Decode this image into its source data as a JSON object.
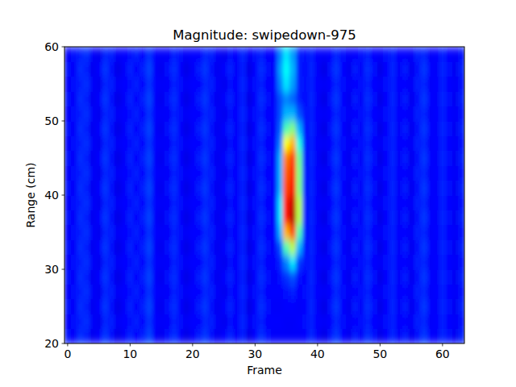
{
  "chart_data": {
    "type": "heatmap",
    "title": "Magnitude: swipedown-975",
    "x_label": "Frame",
    "y_label": "Range (cm)",
    "x": [
      0,
      1,
      2,
      3,
      4,
      5,
      6,
      7,
      8,
      9,
      10,
      11,
      12,
      13,
      14,
      15,
      16,
      17,
      18,
      19,
      20,
      21,
      22,
      23,
      24,
      25,
      26,
      27,
      28,
      29,
      30,
      31,
      32,
      33,
      34,
      35,
      36,
      37,
      38,
      39,
      40,
      41,
      42,
      43,
      44,
      45,
      46,
      47,
      48,
      49,
      50,
      51,
      52,
      53,
      54,
      55,
      56,
      57,
      58,
      59,
      60,
      61,
      62,
      63
    ],
    "y": [
      21,
      23,
      25,
      27,
      29,
      31,
      33,
      35,
      37,
      39,
      41,
      43,
      45,
      47,
      49,
      51,
      53,
      55,
      57,
      59
    ],
    "cells": [
      [
        0.14,
        0.12,
        0.17,
        0.15,
        0.11,
        0.13,
        0.18,
        0.14,
        0.1,
        0.12,
        0.16,
        0.13,
        0.15,
        0.19,
        0.12,
        0.11,
        0.14,
        0.17,
        0.13,
        0.1,
        0.12,
        0.15,
        0.18,
        0.14,
        0.11,
        0.13,
        0.16,
        0.12,
        0.15,
        0.1,
        0.13,
        0.17,
        0.14,
        0.12,
        0.12,
        0.12,
        0.12,
        0.12,
        0.13,
        0.16,
        0.12,
        0.1,
        0.14,
        0.18,
        0.13,
        0.11,
        0.15,
        0.12,
        0.17,
        0.14,
        0.1,
        0.13,
        0.16,
        0.12,
        0.15,
        0.11,
        0.14,
        0.18,
        0.13,
        0.12,
        0.16,
        0.14,
        0.11,
        0.15
      ],
      [
        0.12,
        0.14,
        0.15,
        0.17,
        0.12,
        0.11,
        0.16,
        0.15,
        0.12,
        0.13,
        0.14,
        0.15,
        0.13,
        0.17,
        0.13,
        0.12,
        0.12,
        0.15,
        0.14,
        0.12,
        0.13,
        0.13,
        0.16,
        0.15,
        0.12,
        0.11,
        0.14,
        0.13,
        0.16,
        0.12,
        0.14,
        0.15,
        0.13,
        0.13,
        0.13,
        0.12,
        0.12,
        0.13,
        0.14,
        0.15,
        0.13,
        0.12,
        0.13,
        0.16,
        0.14,
        0.12,
        0.13,
        0.14,
        0.15,
        0.13,
        0.12,
        0.14,
        0.15,
        0.13,
        0.13,
        0.12,
        0.15,
        0.16,
        0.12,
        0.13,
        0.15,
        0.13,
        0.12,
        0.14
      ],
      [
        0.14,
        0.12,
        0.17,
        0.15,
        0.11,
        0.13,
        0.18,
        0.14,
        0.1,
        0.12,
        0.16,
        0.13,
        0.15,
        0.19,
        0.12,
        0.11,
        0.14,
        0.17,
        0.13,
        0.1,
        0.12,
        0.15,
        0.18,
        0.14,
        0.11,
        0.13,
        0.16,
        0.12,
        0.15,
        0.1,
        0.13,
        0.17,
        0.14,
        0.12,
        0.12,
        0.13,
        0.13,
        0.12,
        0.13,
        0.16,
        0.12,
        0.1,
        0.14,
        0.18,
        0.13,
        0.11,
        0.15,
        0.12,
        0.17,
        0.14,
        0.1,
        0.13,
        0.16,
        0.12,
        0.15,
        0.11,
        0.14,
        0.18,
        0.13,
        0.12,
        0.16,
        0.14,
        0.11,
        0.15
      ],
      [
        0.12,
        0.14,
        0.15,
        0.17,
        0.12,
        0.11,
        0.16,
        0.15,
        0.12,
        0.13,
        0.14,
        0.15,
        0.13,
        0.17,
        0.13,
        0.12,
        0.12,
        0.15,
        0.14,
        0.12,
        0.13,
        0.13,
        0.16,
        0.15,
        0.12,
        0.11,
        0.14,
        0.13,
        0.16,
        0.12,
        0.14,
        0.15,
        0.13,
        0.13,
        0.13,
        0.14,
        0.15,
        0.13,
        0.14,
        0.15,
        0.13,
        0.12,
        0.13,
        0.16,
        0.14,
        0.12,
        0.13,
        0.14,
        0.15,
        0.13,
        0.12,
        0.14,
        0.15,
        0.13,
        0.13,
        0.12,
        0.15,
        0.16,
        0.12,
        0.13,
        0.15,
        0.13,
        0.12,
        0.14
      ],
      [
        0.14,
        0.12,
        0.17,
        0.15,
        0.11,
        0.13,
        0.18,
        0.14,
        0.1,
        0.12,
        0.16,
        0.13,
        0.15,
        0.19,
        0.12,
        0.11,
        0.14,
        0.17,
        0.13,
        0.1,
        0.12,
        0.15,
        0.18,
        0.14,
        0.11,
        0.13,
        0.16,
        0.12,
        0.15,
        0.1,
        0.13,
        0.17,
        0.14,
        0.12,
        0.14,
        0.17,
        0.2,
        0.14,
        0.13,
        0.16,
        0.12,
        0.1,
        0.14,
        0.18,
        0.13,
        0.11,
        0.15,
        0.12,
        0.17,
        0.14,
        0.1,
        0.13,
        0.16,
        0.12,
        0.15,
        0.11,
        0.14,
        0.18,
        0.13,
        0.12,
        0.16,
        0.14,
        0.11,
        0.15
      ],
      [
        0.12,
        0.14,
        0.15,
        0.17,
        0.12,
        0.11,
        0.16,
        0.15,
        0.12,
        0.13,
        0.14,
        0.15,
        0.13,
        0.17,
        0.13,
        0.12,
        0.12,
        0.15,
        0.14,
        0.12,
        0.13,
        0.13,
        0.16,
        0.15,
        0.12,
        0.11,
        0.14,
        0.13,
        0.16,
        0.12,
        0.14,
        0.15,
        0.13,
        0.13,
        0.16,
        0.25,
        0.35,
        0.18,
        0.14,
        0.15,
        0.13,
        0.12,
        0.13,
        0.16,
        0.14,
        0.12,
        0.13,
        0.14,
        0.15,
        0.13,
        0.12,
        0.14,
        0.15,
        0.13,
        0.13,
        0.12,
        0.15,
        0.16,
        0.12,
        0.13,
        0.15,
        0.13,
        0.12,
        0.14
      ],
      [
        0.14,
        0.12,
        0.17,
        0.15,
        0.11,
        0.13,
        0.18,
        0.14,
        0.1,
        0.12,
        0.16,
        0.13,
        0.15,
        0.19,
        0.12,
        0.11,
        0.14,
        0.17,
        0.13,
        0.1,
        0.12,
        0.15,
        0.18,
        0.14,
        0.11,
        0.13,
        0.16,
        0.12,
        0.15,
        0.1,
        0.13,
        0.17,
        0.14,
        0.12,
        0.2,
        0.45,
        0.55,
        0.3,
        0.13,
        0.16,
        0.12,
        0.1,
        0.14,
        0.18,
        0.13,
        0.11,
        0.15,
        0.12,
        0.17,
        0.14,
        0.1,
        0.13,
        0.16,
        0.12,
        0.15,
        0.11,
        0.14,
        0.18,
        0.13,
        0.12,
        0.16,
        0.14,
        0.11,
        0.15
      ],
      [
        0.12,
        0.14,
        0.15,
        0.17,
        0.12,
        0.11,
        0.16,
        0.15,
        0.12,
        0.13,
        0.14,
        0.15,
        0.13,
        0.17,
        0.13,
        0.12,
        0.12,
        0.15,
        0.14,
        0.12,
        0.13,
        0.13,
        0.16,
        0.15,
        0.12,
        0.11,
        0.14,
        0.13,
        0.16,
        0.12,
        0.14,
        0.15,
        0.13,
        0.13,
        0.3,
        0.7,
        0.8,
        0.45,
        0.14,
        0.15,
        0.13,
        0.12,
        0.13,
        0.16,
        0.14,
        0.12,
        0.13,
        0.14,
        0.15,
        0.13,
        0.12,
        0.14,
        0.15,
        0.13,
        0.13,
        0.12,
        0.15,
        0.16,
        0.12,
        0.13,
        0.15,
        0.13,
        0.12,
        0.14
      ],
      [
        0.14,
        0.12,
        0.17,
        0.15,
        0.11,
        0.13,
        0.18,
        0.14,
        0.1,
        0.12,
        0.16,
        0.13,
        0.15,
        0.19,
        0.12,
        0.11,
        0.14,
        0.17,
        0.13,
        0.1,
        0.12,
        0.15,
        0.18,
        0.14,
        0.11,
        0.13,
        0.16,
        0.12,
        0.15,
        0.1,
        0.13,
        0.17,
        0.14,
        0.12,
        0.35,
        0.85,
        0.95,
        0.55,
        0.13,
        0.16,
        0.12,
        0.1,
        0.14,
        0.18,
        0.13,
        0.11,
        0.15,
        0.12,
        0.17,
        0.14,
        0.1,
        0.13,
        0.16,
        0.12,
        0.15,
        0.11,
        0.14,
        0.18,
        0.13,
        0.12,
        0.16,
        0.14,
        0.11,
        0.15
      ],
      [
        0.12,
        0.14,
        0.15,
        0.17,
        0.12,
        0.11,
        0.16,
        0.15,
        0.12,
        0.13,
        0.14,
        0.15,
        0.13,
        0.17,
        0.13,
        0.12,
        0.12,
        0.15,
        0.14,
        0.12,
        0.13,
        0.13,
        0.16,
        0.15,
        0.12,
        0.11,
        0.14,
        0.13,
        0.16,
        0.12,
        0.14,
        0.15,
        0.13,
        0.13,
        0.35,
        0.85,
        0.93,
        0.55,
        0.14,
        0.15,
        0.13,
        0.12,
        0.13,
        0.16,
        0.14,
        0.12,
        0.13,
        0.14,
        0.15,
        0.13,
        0.12,
        0.14,
        0.15,
        0.13,
        0.13,
        0.12,
        0.15,
        0.16,
        0.12,
        0.13,
        0.15,
        0.13,
        0.12,
        0.14
      ],
      [
        0.14,
        0.12,
        0.17,
        0.15,
        0.11,
        0.13,
        0.18,
        0.14,
        0.1,
        0.12,
        0.16,
        0.13,
        0.15,
        0.19,
        0.12,
        0.11,
        0.14,
        0.17,
        0.13,
        0.1,
        0.12,
        0.15,
        0.18,
        0.14,
        0.11,
        0.13,
        0.16,
        0.12,
        0.15,
        0.1,
        0.13,
        0.17,
        0.14,
        0.12,
        0.3,
        0.8,
        0.88,
        0.5,
        0.13,
        0.16,
        0.12,
        0.1,
        0.14,
        0.18,
        0.13,
        0.11,
        0.15,
        0.12,
        0.17,
        0.14,
        0.1,
        0.13,
        0.16,
        0.12,
        0.15,
        0.11,
        0.14,
        0.18,
        0.13,
        0.12,
        0.16,
        0.14,
        0.11,
        0.15
      ],
      [
        0.12,
        0.14,
        0.15,
        0.17,
        0.12,
        0.11,
        0.16,
        0.15,
        0.12,
        0.13,
        0.14,
        0.15,
        0.13,
        0.17,
        0.13,
        0.12,
        0.12,
        0.15,
        0.14,
        0.12,
        0.13,
        0.13,
        0.16,
        0.15,
        0.12,
        0.11,
        0.14,
        0.13,
        0.16,
        0.12,
        0.14,
        0.15,
        0.13,
        0.13,
        0.3,
        0.78,
        0.85,
        0.5,
        0.14,
        0.15,
        0.13,
        0.12,
        0.13,
        0.16,
        0.14,
        0.12,
        0.13,
        0.14,
        0.15,
        0.13,
        0.12,
        0.14,
        0.15,
        0.13,
        0.13,
        0.12,
        0.15,
        0.16,
        0.12,
        0.13,
        0.15,
        0.13,
        0.12,
        0.14
      ],
      [
        0.14,
        0.12,
        0.17,
        0.15,
        0.11,
        0.13,
        0.18,
        0.14,
        0.1,
        0.12,
        0.16,
        0.13,
        0.15,
        0.19,
        0.12,
        0.11,
        0.14,
        0.17,
        0.13,
        0.1,
        0.12,
        0.15,
        0.18,
        0.14,
        0.11,
        0.13,
        0.16,
        0.12,
        0.15,
        0.1,
        0.13,
        0.17,
        0.14,
        0.12,
        0.3,
        0.75,
        0.82,
        0.48,
        0.13,
        0.16,
        0.12,
        0.1,
        0.14,
        0.18,
        0.13,
        0.11,
        0.15,
        0.12,
        0.17,
        0.14,
        0.1,
        0.13,
        0.16,
        0.12,
        0.15,
        0.11,
        0.14,
        0.18,
        0.13,
        0.12,
        0.16,
        0.14,
        0.11,
        0.15
      ],
      [
        0.12,
        0.14,
        0.15,
        0.17,
        0.12,
        0.11,
        0.16,
        0.15,
        0.12,
        0.13,
        0.14,
        0.15,
        0.13,
        0.17,
        0.13,
        0.12,
        0.12,
        0.15,
        0.14,
        0.12,
        0.13,
        0.13,
        0.16,
        0.15,
        0.12,
        0.11,
        0.14,
        0.13,
        0.16,
        0.12,
        0.14,
        0.15,
        0.13,
        0.13,
        0.25,
        0.62,
        0.7,
        0.4,
        0.14,
        0.15,
        0.13,
        0.12,
        0.13,
        0.16,
        0.14,
        0.12,
        0.13,
        0.14,
        0.15,
        0.13,
        0.12,
        0.14,
        0.15,
        0.13,
        0.13,
        0.12,
        0.15,
        0.16,
        0.12,
        0.13,
        0.15,
        0.13,
        0.12,
        0.14
      ],
      [
        0.14,
        0.12,
        0.17,
        0.15,
        0.11,
        0.13,
        0.18,
        0.14,
        0.1,
        0.12,
        0.16,
        0.13,
        0.15,
        0.19,
        0.12,
        0.11,
        0.14,
        0.17,
        0.13,
        0.1,
        0.12,
        0.15,
        0.18,
        0.14,
        0.11,
        0.13,
        0.16,
        0.12,
        0.15,
        0.1,
        0.13,
        0.17,
        0.14,
        0.12,
        0.22,
        0.45,
        0.5,
        0.3,
        0.13,
        0.16,
        0.12,
        0.1,
        0.14,
        0.18,
        0.13,
        0.11,
        0.15,
        0.12,
        0.17,
        0.14,
        0.1,
        0.13,
        0.16,
        0.12,
        0.15,
        0.11,
        0.14,
        0.18,
        0.13,
        0.12,
        0.16,
        0.14,
        0.11,
        0.15
      ],
      [
        0.12,
        0.14,
        0.15,
        0.17,
        0.12,
        0.11,
        0.16,
        0.15,
        0.12,
        0.13,
        0.14,
        0.15,
        0.13,
        0.17,
        0.13,
        0.12,
        0.12,
        0.15,
        0.14,
        0.12,
        0.13,
        0.13,
        0.16,
        0.15,
        0.12,
        0.11,
        0.14,
        0.13,
        0.16,
        0.12,
        0.14,
        0.15,
        0.13,
        0.13,
        0.2,
        0.3,
        0.3,
        0.2,
        0.14,
        0.15,
        0.13,
        0.12,
        0.13,
        0.16,
        0.14,
        0.12,
        0.13,
        0.14,
        0.15,
        0.13,
        0.12,
        0.14,
        0.15,
        0.13,
        0.13,
        0.12,
        0.15,
        0.16,
        0.12,
        0.13,
        0.15,
        0.13,
        0.12,
        0.14
      ],
      [
        0.14,
        0.12,
        0.17,
        0.15,
        0.11,
        0.13,
        0.18,
        0.14,
        0.1,
        0.12,
        0.16,
        0.13,
        0.15,
        0.19,
        0.12,
        0.11,
        0.14,
        0.17,
        0.13,
        0.1,
        0.12,
        0.15,
        0.18,
        0.14,
        0.11,
        0.13,
        0.16,
        0.12,
        0.15,
        0.1,
        0.13,
        0.17,
        0.14,
        0.12,
        0.2,
        0.25,
        0.22,
        0.15,
        0.13,
        0.16,
        0.12,
        0.1,
        0.14,
        0.18,
        0.13,
        0.11,
        0.15,
        0.12,
        0.17,
        0.14,
        0.1,
        0.13,
        0.16,
        0.12,
        0.15,
        0.11,
        0.14,
        0.18,
        0.13,
        0.12,
        0.16,
        0.14,
        0.11,
        0.15
      ],
      [
        0.12,
        0.14,
        0.15,
        0.17,
        0.12,
        0.11,
        0.16,
        0.15,
        0.12,
        0.13,
        0.14,
        0.15,
        0.13,
        0.17,
        0.13,
        0.12,
        0.12,
        0.15,
        0.14,
        0.12,
        0.13,
        0.13,
        0.16,
        0.15,
        0.12,
        0.11,
        0.14,
        0.13,
        0.16,
        0.12,
        0.14,
        0.15,
        0.13,
        0.13,
        0.25,
        0.35,
        0.28,
        0.15,
        0.14,
        0.15,
        0.13,
        0.12,
        0.13,
        0.16,
        0.14,
        0.12,
        0.13,
        0.14,
        0.15,
        0.13,
        0.12,
        0.14,
        0.15,
        0.13,
        0.13,
        0.12,
        0.15,
        0.16,
        0.12,
        0.13,
        0.15,
        0.13,
        0.12,
        0.14
      ],
      [
        0.14,
        0.12,
        0.17,
        0.15,
        0.11,
        0.13,
        0.18,
        0.14,
        0.1,
        0.12,
        0.16,
        0.13,
        0.15,
        0.19,
        0.12,
        0.11,
        0.14,
        0.17,
        0.13,
        0.1,
        0.12,
        0.15,
        0.18,
        0.14,
        0.11,
        0.13,
        0.16,
        0.12,
        0.15,
        0.1,
        0.13,
        0.17,
        0.14,
        0.12,
        0.28,
        0.38,
        0.3,
        0.15,
        0.13,
        0.16,
        0.12,
        0.1,
        0.14,
        0.18,
        0.13,
        0.11,
        0.15,
        0.12,
        0.17,
        0.14,
        0.1,
        0.13,
        0.16,
        0.12,
        0.15,
        0.11,
        0.14,
        0.18,
        0.13,
        0.12,
        0.16,
        0.14,
        0.11,
        0.15
      ],
      [
        0.12,
        0.14,
        0.15,
        0.17,
        0.12,
        0.11,
        0.16,
        0.15,
        0.12,
        0.13,
        0.14,
        0.15,
        0.13,
        0.17,
        0.13,
        0.12,
        0.12,
        0.15,
        0.14,
        0.12,
        0.13,
        0.13,
        0.16,
        0.15,
        0.12,
        0.11,
        0.14,
        0.13,
        0.16,
        0.12,
        0.14,
        0.15,
        0.13,
        0.13,
        0.25,
        0.35,
        0.28,
        0.15,
        0.14,
        0.15,
        0.13,
        0.12,
        0.13,
        0.16,
        0.14,
        0.12,
        0.13,
        0.14,
        0.15,
        0.13,
        0.12,
        0.14,
        0.15,
        0.13,
        0.13,
        0.12,
        0.15,
        0.16,
        0.12,
        0.13,
        0.15,
        0.13,
        0.12,
        0.14
      ]
    ],
    "zlim": [
      0,
      1
    ],
    "color": "jet",
    "xlim": [
      -0.5,
      63.5
    ],
    "ylim": [
      20,
      60
    ],
    "xticks": [
      0,
      10,
      20,
      30,
      40,
      50,
      60
    ],
    "yticks": [
      20,
      30,
      40,
      50,
      60
    ]
  }
}
